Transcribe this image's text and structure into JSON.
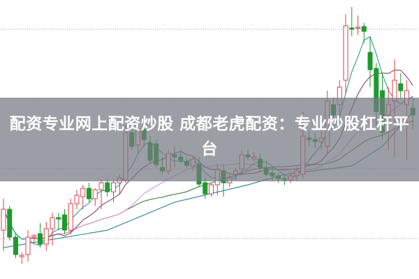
{
  "banner": {
    "text": "配资专业网上配资炒股 成都老虎配资：专业炒股杠杆平台"
  },
  "chart_data": {
    "type": "candlestick",
    "title": "",
    "xlabel": "",
    "ylabel": "",
    "ylim": [
      0,
      40
    ],
    "grid": "dotted horizontal",
    "colors": {
      "up": "#d9404a",
      "down": "#1f9a2e",
      "ma5": "#2b9aa0",
      "ma10": "#8a3d6e",
      "ma20": "#e08fe0",
      "ma30": "#3f7f3a",
      "long_ma": "#3a8c9a",
      "grid": "#999999"
    },
    "candles": [
      [
        7.0,
        11.5,
        4.0,
        10.0
      ],
      [
        10.0,
        10.5,
        5.5,
        6.0
      ],
      [
        6.0,
        6.5,
        3.0,
        3.5
      ],
      [
        3.2,
        3.8,
        2.2,
        3.4
      ],
      [
        3.5,
        7.0,
        2.5,
        6.0
      ],
      [
        6.0,
        6.5,
        5.0,
        6.2
      ],
      [
        6.5,
        8.0,
        4.5,
        5.0
      ],
      [
        5.0,
        8.2,
        4.0,
        7.2
      ],
      [
        7.2,
        9.5,
        4.8,
        8.8
      ],
      [
        8.8,
        9.5,
        7.0,
        8.6
      ],
      [
        9.2,
        10.0,
        6.4,
        7.0
      ],
      [
        7.0,
        11.5,
        6.4,
        10.8
      ],
      [
        10.8,
        12.8,
        10.0,
        12.0
      ],
      [
        11.8,
        13.5,
        10.0,
        13.0
      ],
      [
        13.0,
        13.8,
        11.0,
        11.5
      ],
      [
        11.5,
        13.0,
        10.5,
        12.8
      ],
      [
        12.8,
        14.2,
        10.0,
        13.8
      ],
      [
        13.8,
        14.5,
        11.8,
        12.5
      ],
      [
        12.5,
        14.2,
        11.0,
        13.8
      ],
      [
        13.8,
        15.0,
        12.2,
        14.5
      ],
      [
        14.2,
        22.0,
        13.8,
        21.0
      ],
      [
        21.0,
        23.0,
        18.5,
        19.0
      ],
      [
        19.2,
        22.5,
        18.0,
        21.5
      ],
      [
        21.5,
        23.0,
        19.0,
        20.0
      ],
      [
        19.5,
        20.5,
        16.5,
        17.0
      ],
      [
        19.4,
        20.0,
        16.0,
        16.4
      ],
      [
        16.0,
        17.5,
        15.0,
        15.5
      ],
      [
        15.5,
        18.5,
        15.0,
        18.0
      ],
      [
        17.8,
        19.0,
        16.0,
        17.5
      ],
      [
        17.5,
        18.5,
        16.5,
        17.0
      ],
      [
        16.8,
        17.5,
        16.0,
        16.3
      ],
      [
        16.2,
        17.5,
        15.5,
        17.2
      ],
      [
        16.5,
        17.5,
        13.2,
        13.6
      ],
      [
        13.8,
        14.5,
        11.5,
        12.2
      ],
      [
        12.2,
        13.8,
        11.8,
        13.5
      ],
      [
        13.5,
        16.5,
        12.0,
        15.7
      ],
      [
        15.5,
        16.5,
        11.8,
        13.8
      ],
      [
        13.8,
        15.0,
        13.2,
        14.5
      ],
      [
        15.0,
        16.0,
        14.2,
        15.5
      ],
      [
        15.8,
        18.5,
        15.0,
        17.8
      ],
      [
        17.8,
        18.5,
        17.0,
        17.5
      ],
      [
        17.2,
        18.2,
        16.8,
        17.5
      ],
      [
        17.2,
        18.0,
        15.5,
        16.0
      ],
      [
        16.0,
        17.0,
        14.7,
        15.0
      ],
      [
        15.2,
        16.0,
        14.0,
        14.8
      ],
      [
        14.8,
        15.2,
        13.8,
        14.4
      ],
      [
        14.4,
        15.0,
        13.5,
        14.2
      ],
      [
        14.2,
        15.2,
        13.8,
        14.8
      ],
      [
        14.8,
        16.0,
        14.0,
        15.5
      ],
      [
        15.0,
        24.0,
        14.5,
        20.5
      ],
      [
        20.2,
        21.2,
        19.0,
        20.0
      ],
      [
        20.0,
        21.0,
        18.8,
        19.7
      ],
      [
        19.7,
        21.5,
        18.5,
        20.2
      ],
      [
        19.0,
        27.0,
        18.0,
        25.5
      ],
      [
        25.0,
        26.0,
        22.5,
        23.5
      ],
      [
        25.0,
        28.5,
        23.5,
        27.5
      ],
      [
        28.5,
        38.0,
        26.5,
        36.3
      ],
      [
        36.0,
        39.0,
        34.8,
        35.8
      ],
      [
        36.0,
        37.8,
        35.0,
        36.1
      ],
      [
        36.2,
        36.7,
        33.8,
        35.5
      ],
      [
        32.5,
        34.8,
        27.5,
        30.0
      ],
      [
        30.2,
        31.0,
        22.0,
        24.0
      ],
      [
        27.0,
        29.5,
        20.0,
        21.0
      ],
      [
        23.5,
        27.5,
        18.5,
        25.0
      ],
      [
        25.5,
        31.5,
        17.5,
        28.5
      ],
      [
        28.0,
        29.5,
        26.0,
        27.0
      ],
      [
        25.0,
        28.5,
        17.0,
        27.0
      ],
      [
        24.5,
        26.0,
        21.5,
        23.5
      ]
    ],
    "long_ma": [
      [
        0,
        4.5
      ],
      [
        17,
        7.0
      ],
      [
        28,
        11.0
      ],
      [
        40,
        13.5
      ],
      [
        46,
        15.0
      ],
      [
        57,
        16.2
      ],
      [
        62,
        19.0
      ],
      [
        67,
        24.0
      ]
    ],
    "gridlines": [
      35.8,
      25.8,
      15.8,
      5.8
    ]
  }
}
